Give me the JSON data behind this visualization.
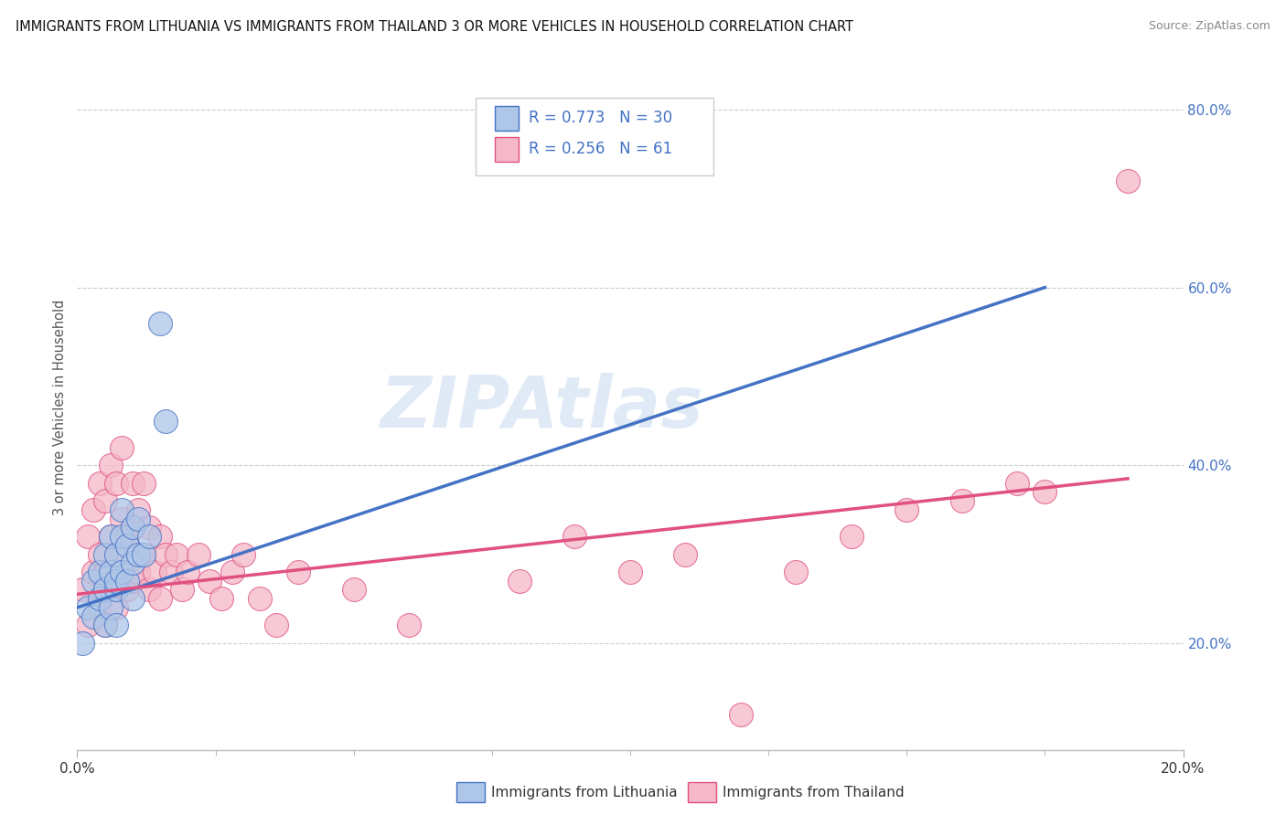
{
  "title": "IMMIGRANTS FROM LITHUANIA VS IMMIGRANTS FROM THAILAND 3 OR MORE VEHICLES IN HOUSEHOLD CORRELATION CHART",
  "source": "Source: ZipAtlas.com",
  "ylabel": "3 or more Vehicles in Household",
  "xmin": 0.0,
  "xmax": 0.2,
  "ymin": 0.08,
  "ymax": 0.85,
  "ytick_labels": [
    "20.0%",
    "40.0%",
    "60.0%",
    "80.0%"
  ],
  "ytick_values": [
    0.2,
    0.4,
    0.6,
    0.8
  ],
  "watermark": "ZIPAtlas",
  "legend_R1": "0.773",
  "legend_N1": "30",
  "legend_R2": "0.256",
  "legend_N2": "61",
  "color_blue": "#aec6e8",
  "color_pink": "#f4b8c8",
  "line_color_blue": "#4472c4",
  "line_color_pink": "#e05080",
  "lithuania_x": [
    0.001,
    0.002,
    0.003,
    0.003,
    0.004,
    0.004,
    0.005,
    0.005,
    0.005,
    0.006,
    0.006,
    0.006,
    0.007,
    0.007,
    0.007,
    0.007,
    0.008,
    0.008,
    0.008,
    0.009,
    0.009,
    0.01,
    0.01,
    0.01,
    0.011,
    0.011,
    0.012,
    0.013,
    0.015,
    0.016
  ],
  "lithuania_y": [
    0.2,
    0.24,
    0.23,
    0.27,
    0.25,
    0.28,
    0.22,
    0.26,
    0.3,
    0.24,
    0.28,
    0.32,
    0.26,
    0.3,
    0.22,
    0.27,
    0.28,
    0.32,
    0.35,
    0.27,
    0.31,
    0.29,
    0.33,
    0.25,
    0.3,
    0.34,
    0.3,
    0.32,
    0.56,
    0.45
  ],
  "thailand_x": [
    0.001,
    0.002,
    0.002,
    0.003,
    0.003,
    0.004,
    0.004,
    0.004,
    0.005,
    0.005,
    0.005,
    0.006,
    0.006,
    0.006,
    0.007,
    0.007,
    0.007,
    0.008,
    0.008,
    0.008,
    0.009,
    0.009,
    0.01,
    0.01,
    0.01,
    0.011,
    0.011,
    0.012,
    0.012,
    0.013,
    0.013,
    0.014,
    0.015,
    0.015,
    0.016,
    0.017,
    0.018,
    0.019,
    0.02,
    0.022,
    0.024,
    0.026,
    0.028,
    0.03,
    0.033,
    0.036,
    0.04,
    0.05,
    0.06,
    0.08,
    0.09,
    0.1,
    0.11,
    0.12,
    0.13,
    0.14,
    0.15,
    0.16,
    0.17,
    0.175,
    0.19
  ],
  "thailand_y": [
    0.26,
    0.22,
    0.32,
    0.28,
    0.35,
    0.24,
    0.3,
    0.38,
    0.22,
    0.28,
    0.36,
    0.26,
    0.32,
    0.4,
    0.24,
    0.3,
    0.38,
    0.28,
    0.34,
    0.42,
    0.26,
    0.32,
    0.27,
    0.33,
    0.38,
    0.28,
    0.35,
    0.3,
    0.38,
    0.26,
    0.33,
    0.28,
    0.32,
    0.25,
    0.3,
    0.28,
    0.3,
    0.26,
    0.28,
    0.3,
    0.27,
    0.25,
    0.28,
    0.3,
    0.25,
    0.22,
    0.28,
    0.26,
    0.22,
    0.27,
    0.32,
    0.28,
    0.3,
    0.12,
    0.28,
    0.32,
    0.35,
    0.36,
    0.38,
    0.37,
    0.72
  ],
  "blue_line_x0": 0.0,
  "blue_line_y0": 0.24,
  "blue_line_x1": 0.175,
  "blue_line_y1": 0.6,
  "pink_line_x0": 0.0,
  "pink_line_y0": 0.255,
  "pink_line_x1": 0.19,
  "pink_line_y1": 0.385
}
